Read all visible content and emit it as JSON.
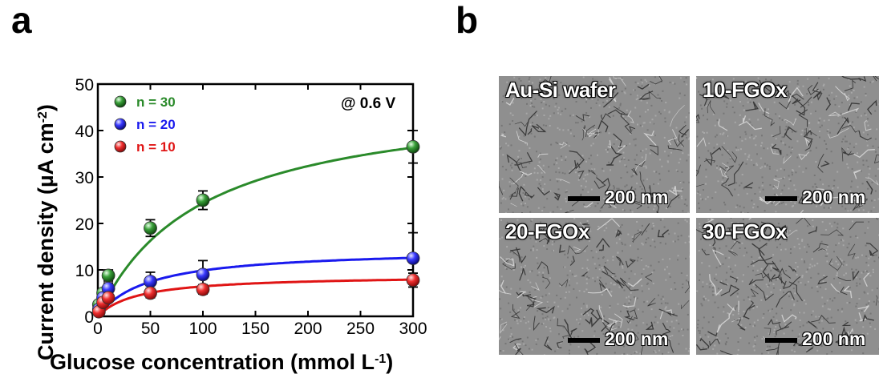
{
  "panel_a": {
    "letter": "a"
  },
  "panel_b": {
    "letter": "b"
  },
  "chart_data": {
    "type": "scatter",
    "xlabel": "Glucose concentration (mmol L",
    "xlabel_sup": "-1",
    "xlabel_end": ")",
    "ylabel": "Current density (µA cm",
    "ylabel_sup": "-2",
    "ylabel_end": ")",
    "xlim": [
      0,
      300
    ],
    "ylim": [
      0,
      50
    ],
    "xticks": [
      0,
      50,
      100,
      150,
      200,
      250,
      300
    ],
    "yticks": [
      0,
      10,
      20,
      30,
      40,
      50
    ],
    "annotation": "@ 0.6 V",
    "legend_position": "top-left",
    "series": [
      {
        "name": "n = 30",
        "color": "#2a8a2a",
        "x": [
          1,
          5,
          10,
          50,
          100,
          300
        ],
        "y": [
          2.5,
          5,
          8.8,
          19,
          25,
          36.5
        ],
        "err": [
          0.5,
          0.8,
          1.2,
          1.8,
          2,
          3.5
        ],
        "fit": {
          "vmax": 48.2,
          "km": 98
        }
      },
      {
        "name": "n = 20",
        "color": "#1a1aee",
        "x": [
          1,
          5,
          10,
          50,
          100,
          300
        ],
        "y": [
          1.5,
          4,
          6,
          7.5,
          9,
          12.5
        ],
        "err": [
          0.5,
          0.8,
          1.2,
          2,
          3,
          5.5
        ],
        "fit": {
          "vmax": 14.6,
          "km": 48
        }
      },
      {
        "name": "n = 10",
        "color": "#e01515",
        "x": [
          1,
          5,
          10,
          50,
          100,
          300
        ],
        "y": [
          1,
          3,
          4,
          5,
          5.8,
          7.8
        ],
        "err": [
          0.5,
          0.6,
          0.8,
          1,
          1,
          1.5
        ],
        "fit": {
          "vmax": 8.9,
          "km": 38
        }
      }
    ]
  },
  "sem_images": [
    {
      "label": "Au-Si wafer",
      "scalebar": "200 nm"
    },
    {
      "label": "10-FGOx",
      "scalebar": "200 nm"
    },
    {
      "label": "20-FGOx",
      "scalebar": "200 nm"
    },
    {
      "label": "30-FGOx",
      "scalebar": "200 nm"
    }
  ]
}
